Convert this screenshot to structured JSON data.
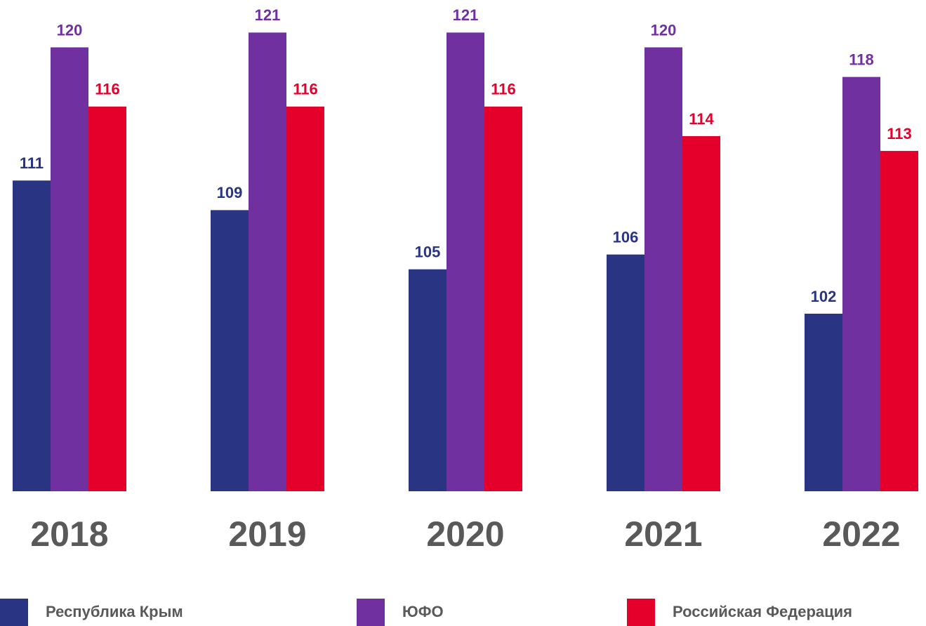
{
  "chart_data": {
    "type": "bar",
    "categories": [
      "2018",
      "2019",
      "2020",
      "2021",
      "2022"
    ],
    "series": [
      {
        "name": "Республика Крым",
        "color": "#293583",
        "values": [
          111,
          109,
          105,
          106,
          102
        ]
      },
      {
        "name": "ЮФО",
        "color": "#7030a0",
        "values": [
          120,
          121,
          121,
          120,
          118
        ]
      },
      {
        "name": "Российская Федерация",
        "color": "#e4002b",
        "values": [
          116,
          116,
          116,
          114,
          113
        ]
      }
    ],
    "ylim": [
      90,
      123.2
    ],
    "legend": "bottom"
  }
}
